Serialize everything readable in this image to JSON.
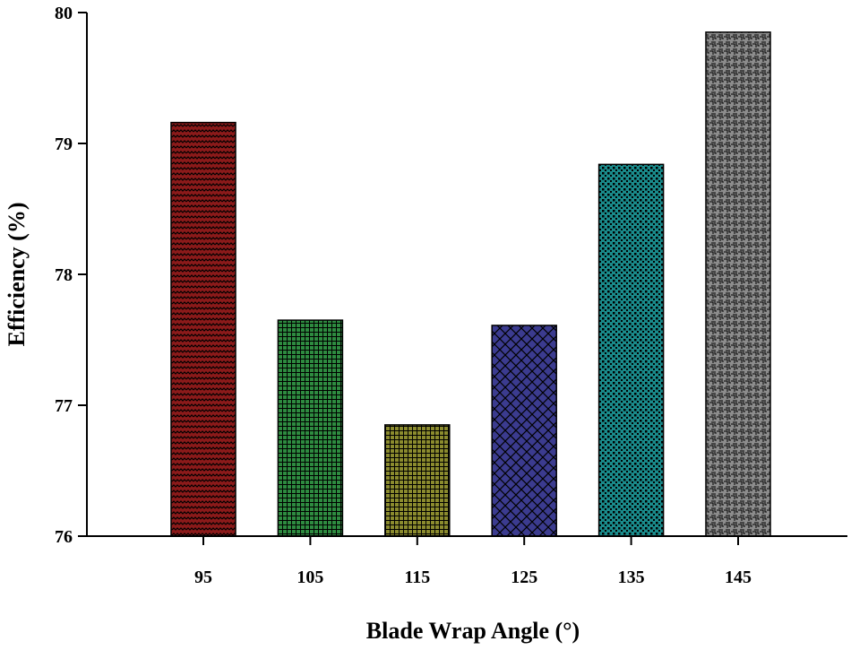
{
  "chart_data": {
    "type": "bar",
    "categories": [
      "95",
      "105",
      "115",
      "125",
      "135",
      "145"
    ],
    "values": [
      79.16,
      77.65,
      76.85,
      77.61,
      78.84,
      79.85
    ],
    "xlabel": "Blade Wrap Angle (°)",
    "ylabel": "Efficiency (%)",
    "ylim": [
      76,
      80
    ],
    "yticks": [
      "76",
      "77",
      "78",
      "79",
      "80"
    ],
    "grid": false,
    "legend": "none",
    "colors": [
      "#8b1a1a",
      "#2e8b40",
      "#8b8b2e",
      "#3b3b8f",
      "#1a8b8b",
      "#8c8c8c"
    ],
    "patterns": [
      "wave",
      "grid",
      "grid",
      "crosshatch",
      "dots",
      "maze"
    ]
  }
}
